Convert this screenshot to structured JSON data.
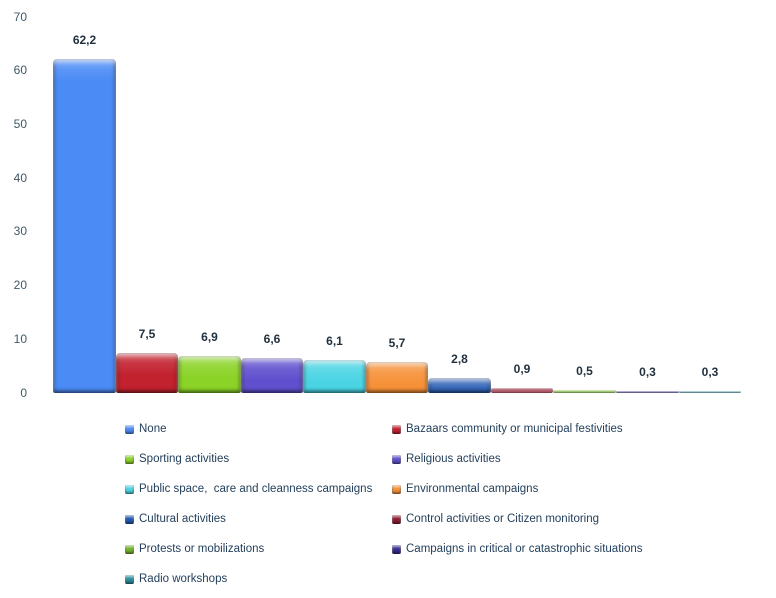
{
  "chart_data": {
    "type": "bar",
    "title": "",
    "xlabel": "",
    "ylabel": "",
    "ylim": [
      0,
      70
    ],
    "yticks": [
      0,
      10,
      20,
      30,
      40,
      50,
      60,
      70
    ],
    "grid": false,
    "legend_position": "bottom-two-columns",
    "decimal_separator": ",",
    "categories": [
      "None",
      "Bazaars community or municipal festivities",
      "Sporting activities",
      "Religious activities",
      "Public space,  care and cleanness campaigns",
      "Environmental campaigns",
      "Cultural activities",
      "Control activities or Citizen monitoring",
      "Protests or mobilizations",
      "Campaigns in critical or catastrophic situations",
      "Radio workshops"
    ],
    "values": [
      62.2,
      7.5,
      6.9,
      6.6,
      6.1,
      5.7,
      2.8,
      0.9,
      0.5,
      0.3,
      0.3
    ],
    "value_labels": [
      "62,2",
      "7,5",
      "6,9",
      "6,6",
      "6,1",
      "5,7",
      "2,8",
      "0,9",
      "0,5",
      "0,3",
      "0,3"
    ],
    "colors": [
      "#4b8bf5",
      "#c2212e",
      "#8bd327",
      "#6050ce",
      "#4ad4e4",
      "#f69138",
      "#2057b2",
      "#8f1c31",
      "#74b42a",
      "#352b90",
      "#2b8e9d"
    ],
    "text_colors": {
      "tick_label": "#3f5866",
      "value_label": "#22313f",
      "legend_label": "#24405c"
    }
  }
}
